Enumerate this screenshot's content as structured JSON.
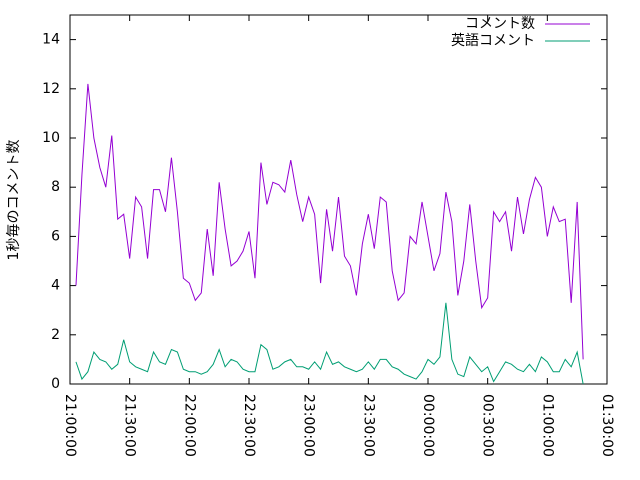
{
  "chart_data": {
    "type": "line",
    "ylabel": "1秒毎のコメント数",
    "x": [
      "21:03:00",
      "21:06:00",
      "21:09:00",
      "21:12:00",
      "21:15:00",
      "21:18:00",
      "21:21:00",
      "21:24:00",
      "21:27:00",
      "21:30:00",
      "21:33:00",
      "21:36:00",
      "21:39:00",
      "21:42:00",
      "21:45:00",
      "21:48:00",
      "21:51:00",
      "21:54:00",
      "21:57:00",
      "22:00:00",
      "22:03:00",
      "22:06:00",
      "22:09:00",
      "22:12:00",
      "22:15:00",
      "22:18:00",
      "22:21:00",
      "22:24:00",
      "22:27:00",
      "22:30:00",
      "22:33:00",
      "22:36:00",
      "22:39:00",
      "22:42:00",
      "22:45:00",
      "22:48:00",
      "22:51:00",
      "22:54:00",
      "22:57:00",
      "23:00:00",
      "23:03:00",
      "23:06:00",
      "23:09:00",
      "23:12:00",
      "23:15:00",
      "23:18:00",
      "23:21:00",
      "23:24:00",
      "23:27:00",
      "23:30:00",
      "23:33:00",
      "23:36:00",
      "23:39:00",
      "23:42:00",
      "23:45:00",
      "23:48:00",
      "23:51:00",
      "23:54:00",
      "23:57:00",
      "00:00:00",
      "00:03:00",
      "00:06:00",
      "00:09:00",
      "00:12:00",
      "00:15:00",
      "00:18:00",
      "00:21:00",
      "00:24:00",
      "00:27:00",
      "00:30:00",
      "00:33:00",
      "00:36:00",
      "00:39:00",
      "00:42:00",
      "00:45:00",
      "00:48:00",
      "00:51:00",
      "00:54:00",
      "00:57:00",
      "01:00:00",
      "01:03:00",
      "01:06:00",
      "01:09:00",
      "01:12:00",
      "01:15:00",
      "01:18:00"
    ],
    "series": [
      {
        "name": "コメント数",
        "color": "#9400d3",
        "values": [
          4.0,
          8.5,
          12.2,
          10.0,
          8.8,
          8.0,
          10.1,
          6.7,
          6.9,
          5.1,
          7.6,
          7.2,
          5.1,
          7.9,
          7.9,
          7.0,
          9.2,
          7.0,
          4.3,
          4.1,
          3.4,
          3.7,
          6.3,
          4.4,
          8.2,
          6.3,
          4.8,
          5.0,
          5.4,
          6.2,
          4.3,
          9.0,
          7.3,
          8.2,
          8.1,
          7.8,
          9.1,
          7.7,
          6.6,
          7.6,
          6.9,
          4.1,
          7.1,
          5.4,
          7.6,
          5.2,
          4.8,
          3.6,
          5.7,
          6.9,
          5.5,
          7.6,
          7.4,
          4.6,
          3.4,
          3.7,
          6.0,
          5.7,
          7.4,
          6.0,
          4.6,
          5.3,
          7.8,
          6.6,
          3.6,
          5.0,
          7.3,
          5.0,
          3.1,
          3.5,
          7.0,
          6.6,
          7.0,
          5.4,
          7.6,
          6.1,
          7.5,
          8.4,
          8.0,
          6.0,
          7.2,
          6.6,
          6.7,
          3.3,
          7.4,
          1.0
        ]
      },
      {
        "name": "英語コメント",
        "color": "#009e73",
        "values": [
          0.9,
          0.2,
          0.5,
          1.3,
          1.0,
          0.9,
          0.6,
          0.8,
          1.8,
          0.9,
          0.7,
          0.6,
          0.5,
          1.3,
          0.9,
          0.8,
          1.4,
          1.3,
          0.6,
          0.5,
          0.5,
          0.4,
          0.5,
          0.8,
          1.4,
          0.7,
          1.0,
          0.9,
          0.6,
          0.5,
          0.5,
          1.6,
          1.4,
          0.6,
          0.7,
          0.9,
          1.0,
          0.7,
          0.7,
          0.6,
          0.9,
          0.6,
          1.3,
          0.8,
          0.9,
          0.7,
          0.6,
          0.5,
          0.6,
          0.9,
          0.6,
          1.0,
          1.0,
          0.7,
          0.6,
          0.4,
          0.3,
          0.2,
          0.5,
          1.0,
          0.8,
          1.1,
          3.3,
          1.0,
          0.4,
          0.3,
          1.1,
          0.8,
          0.5,
          0.7,
          0.1,
          0.5,
          0.9,
          0.8,
          0.6,
          0.5,
          0.8,
          0.5,
          1.1,
          0.9,
          0.5,
          0.5,
          1.0,
          0.7,
          1.3,
          0.0
        ]
      }
    ],
    "xlim": [
      "21:00:00",
      "01:30:00"
    ],
    "xticks": [
      "21:00:00",
      "21:30:00",
      "22:00:00",
      "22:30:00",
      "23:00:00",
      "23:30:00",
      "00:00:00",
      "00:30:00",
      "01:00:00",
      "01:30:00"
    ],
    "ylim": [
      0,
      15
    ],
    "yticks": [
      0,
      2,
      4,
      6,
      8,
      10,
      12,
      14
    ],
    "grid": false,
    "legend": "top-right"
  }
}
